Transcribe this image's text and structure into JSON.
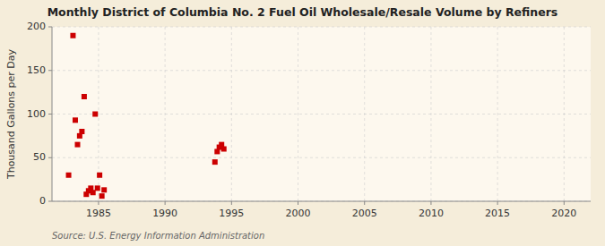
{
  "chart_data": {
    "type": "scatter",
    "title": "Monthly District of Columbia No. 2 Fuel Oil Wholesale/Resale Volume by Refiners",
    "ylabel": "Thousand Gallons per Day",
    "source": "Source: U.S. Energy Information Administration",
    "color": "#cc0000",
    "marker": "square",
    "grid": true,
    "xlim": [
      1981.5,
      2022
    ],
    "ylim": [
      0,
      200
    ],
    "xticks": [
      1985,
      1990,
      1995,
      2000,
      2005,
      2010,
      2015,
      2020
    ],
    "yticks": [
      0,
      50,
      100,
      150,
      200
    ],
    "x": [
      1982.75,
      1983.08,
      1983.25,
      1983.42,
      1983.58,
      1983.75,
      1983.92,
      1984.08,
      1984.25,
      1984.42,
      1984.58,
      1984.75,
      1984.92,
      1985.08,
      1985.25,
      1985.42,
      1993.75,
      1993.92,
      1994.08,
      1994.25,
      1994.42
    ],
    "values": [
      30,
      190,
      93,
      65,
      75,
      80,
      120,
      8,
      12,
      15,
      10,
      100,
      15,
      30,
      6,
      13,
      45,
      57,
      62,
      65,
      60
    ]
  }
}
